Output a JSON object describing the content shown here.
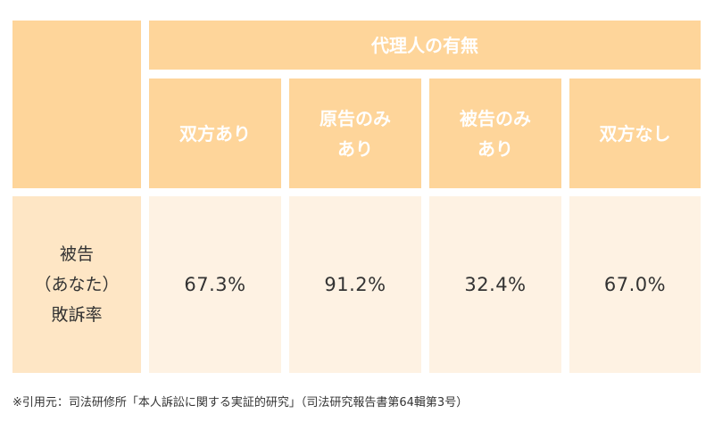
{
  "table": {
    "group_header": "代理人の有無",
    "columns": [
      {
        "line1": "双方あり",
        "line2": ""
      },
      {
        "line1": "原告のみ",
        "line2": "あり"
      },
      {
        "line1": "被告のみ",
        "line2": "あり"
      },
      {
        "line1": "双方なし",
        "line2": ""
      }
    ],
    "row_header": {
      "line1": "被告",
      "line2": "（あなた）",
      "line3": "敗訴率"
    },
    "values": [
      "67.3%",
      "91.2%",
      "32.4%",
      "67.0%"
    ]
  },
  "footnote": "※引用元：司法研修所「本人訴訟に関する実証的研究」（司法研究報告書第64輯第3号）",
  "colors": {
    "header_bg": "#fed59a",
    "row_header_bg": "#fee6c5",
    "value_bg": "#fef2e3",
    "header_text": "#ffffff",
    "body_text": "#333333"
  }
}
